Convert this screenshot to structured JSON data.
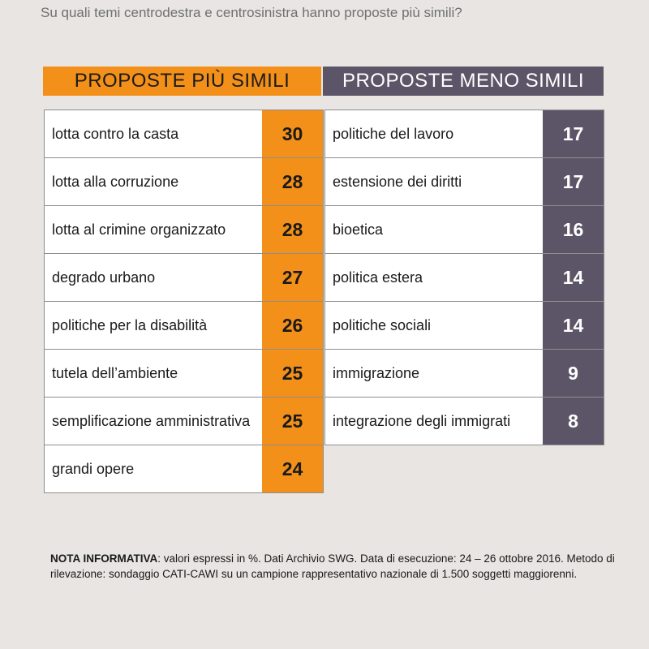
{
  "subtitle": "Su quali temi centrodestra e centrosinistra hanno proposte più simili?",
  "colors": {
    "orange": "#f39019",
    "purple": "#5c5568",
    "background": "#e8e5e2"
  },
  "left": {
    "header": "PROPOSTE PIÙ SIMILI",
    "rows": [
      {
        "label": "lotta contro la casta",
        "value": "30"
      },
      {
        "label": "lotta alla corruzione",
        "value": "28"
      },
      {
        "label": "lotta al crimine organizzato",
        "value": "28"
      },
      {
        "label": "degrado urbano",
        "value": "27"
      },
      {
        "label": "politiche per la disabilità",
        "value": "26"
      },
      {
        "label": "tutela dell’ambiente",
        "value": "25"
      },
      {
        "label": "semplificazione amministrativa",
        "value": "25"
      },
      {
        "label": "grandi opere",
        "value": "24"
      }
    ]
  },
  "right": {
    "header": "PROPOSTE MENO SIMILI",
    "rows": [
      {
        "label": "politiche del lavoro",
        "value": "17"
      },
      {
        "label": "estensione dei diritti",
        "value": "17"
      },
      {
        "label": "bioetica",
        "value": "16"
      },
      {
        "label": "politica estera",
        "value": "14"
      },
      {
        "label": "politiche sociali",
        "value": "14"
      },
      {
        "label": "immigrazione",
        "value": "9"
      },
      {
        "label": "integrazione degli immigrati",
        "value": "8"
      }
    ]
  },
  "note": {
    "label": "NOTA INFORMATIVA",
    "text": ": valori espressi in %. Dati Archivio SWG. Data di esecuzione: 24 – 26 ottobre 2016. Metodo di rilevazione: sondaggio CATI-CAWI su un campione rappresentativo nazionale di 1.500 soggetti maggiorenni."
  },
  "chart_data": {
    "type": "table",
    "title": "Su quali temi centrodestra e centrosinistra hanno proposte più simili?",
    "series": [
      {
        "name": "PROPOSTE PIÙ SIMILI",
        "categories": [
          "lotta contro la casta",
          "lotta alla corruzione",
          "lotta al crimine organizzato",
          "degrado urbano",
          "politiche per la disabilità",
          "tutela dell’ambiente",
          "semplificazione amministrativa",
          "grandi opere"
        ],
        "values": [
          30,
          28,
          28,
          27,
          26,
          25,
          25,
          24
        ]
      },
      {
        "name": "PROPOSTE MENO SIMILI",
        "categories": [
          "politiche del lavoro",
          "estensione dei diritti",
          "bioetica",
          "politica estera",
          "politiche sociali",
          "immigrazione",
          "integrazione degli immigrati"
        ],
        "values": [
          17,
          17,
          16,
          14,
          14,
          9,
          8
        ]
      }
    ]
  }
}
